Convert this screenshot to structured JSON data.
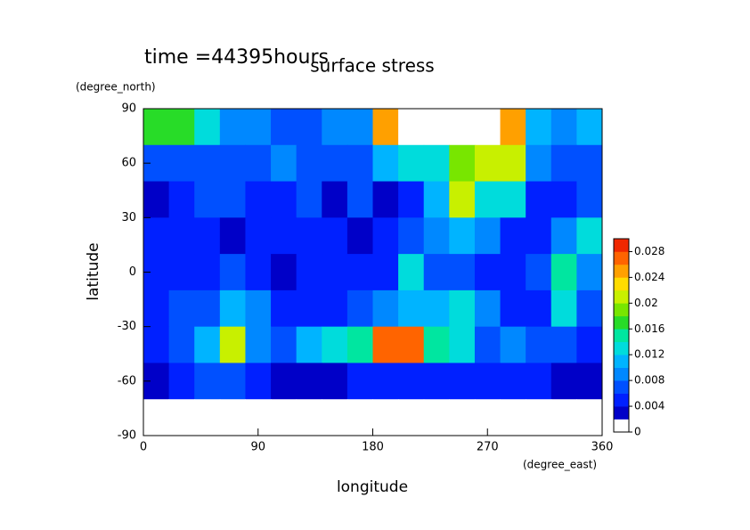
{
  "chart_data": {
    "type": "contour",
    "title": "time =44395hours",
    "subtitle": "surface stress",
    "x_label": "longitude",
    "x_unit": "(degree_east)",
    "y_label": "latitude",
    "y_unit": "(degree_north)",
    "xlim": [
      0,
      360
    ],
    "xticks": [
      0,
      90,
      180,
      270,
      360
    ],
    "ylim": [
      -90,
      90
    ],
    "yticks": [
      -90,
      -60,
      -30,
      0,
      30,
      60,
      90
    ],
    "x": [
      10,
      30,
      50,
      70,
      90,
      110,
      130,
      150,
      170,
      190,
      210,
      230,
      250,
      270,
      290,
      310,
      330,
      350
    ],
    "y": [
      80,
      60,
      40,
      20,
      0,
      -20,
      -40,
      -60,
      -80
    ],
    "z": [
      [
        0.016,
        0.016,
        0.012,
        0.008,
        0.008,
        0.006,
        0.006,
        0.008,
        0.008,
        0.024,
        0.03,
        0.03,
        0.03,
        0.03,
        0.024,
        0.01,
        0.008,
        0.01
      ],
      [
        0.006,
        0.006,
        0.006,
        0.006,
        0.006,
        0.008,
        0.006,
        0.006,
        0.006,
        0.01,
        0.012,
        0.012,
        0.018,
        0.02,
        0.02,
        0.008,
        0.006,
        0.006
      ],
      [
        0.002,
        0.004,
        0.006,
        0.006,
        0.004,
        0.004,
        0.006,
        0.002,
        0.006,
        0.002,
        0.004,
        0.01,
        0.02,
        0.012,
        0.012,
        0.004,
        0.004,
        0.006
      ],
      [
        0.004,
        0.004,
        0.004,
        0.002,
        0.004,
        0.004,
        0.004,
        0.004,
        0.002,
        0.004,
        0.006,
        0.008,
        0.01,
        0.008,
        0.004,
        0.004,
        0.008,
        0.012
      ],
      [
        0.004,
        0.004,
        0.004,
        0.006,
        0.004,
        0.002,
        0.004,
        0.004,
        0.004,
        0.004,
        0.012,
        0.006,
        0.006,
        0.004,
        0.004,
        0.006,
        0.014,
        0.008
      ],
      [
        0.004,
        0.006,
        0.006,
        0.01,
        0.008,
        0.004,
        0.004,
        0.004,
        0.006,
        0.008,
        0.01,
        0.01,
        0.012,
        0.008,
        0.004,
        0.004,
        0.012,
        0.006
      ],
      [
        0.004,
        0.006,
        0.01,
        0.02,
        0.008,
        0.006,
        0.01,
        0.012,
        0.014,
        0.026,
        0.026,
        0.014,
        0.012,
        0.006,
        0.008,
        0.006,
        0.006,
        0.004
      ],
      [
        0.002,
        0.004,
        0.006,
        0.006,
        0.004,
        0.002,
        0.002,
        0.002,
        0.004,
        0.004,
        0.004,
        0.004,
        0.004,
        0.004,
        0.004,
        0.004,
        0.002,
        0.002
      ],
      [
        0,
        0,
        0,
        0,
        0,
        0,
        0,
        0,
        0,
        0,
        0,
        0,
        0,
        0,
        0,
        0,
        0,
        0
      ]
    ],
    "clim": [
      0,
      0.03
    ],
    "cticks": [
      0,
      0.004,
      0.008,
      0.012,
      0.016,
      0.02,
      0.024,
      0.028
    ],
    "colors": [
      "#ffffff",
      "#0000c8",
      "#0020ff",
      "#0050ff",
      "#0088ff",
      "#00b4ff",
      "#00dcdc",
      "#00e6a0",
      "#28dc28",
      "#78e600",
      "#c8f000",
      "#ffdc00",
      "#ffa000",
      "#ff6400",
      "#f02800"
    ],
    "over_color": "#ffffff"
  }
}
